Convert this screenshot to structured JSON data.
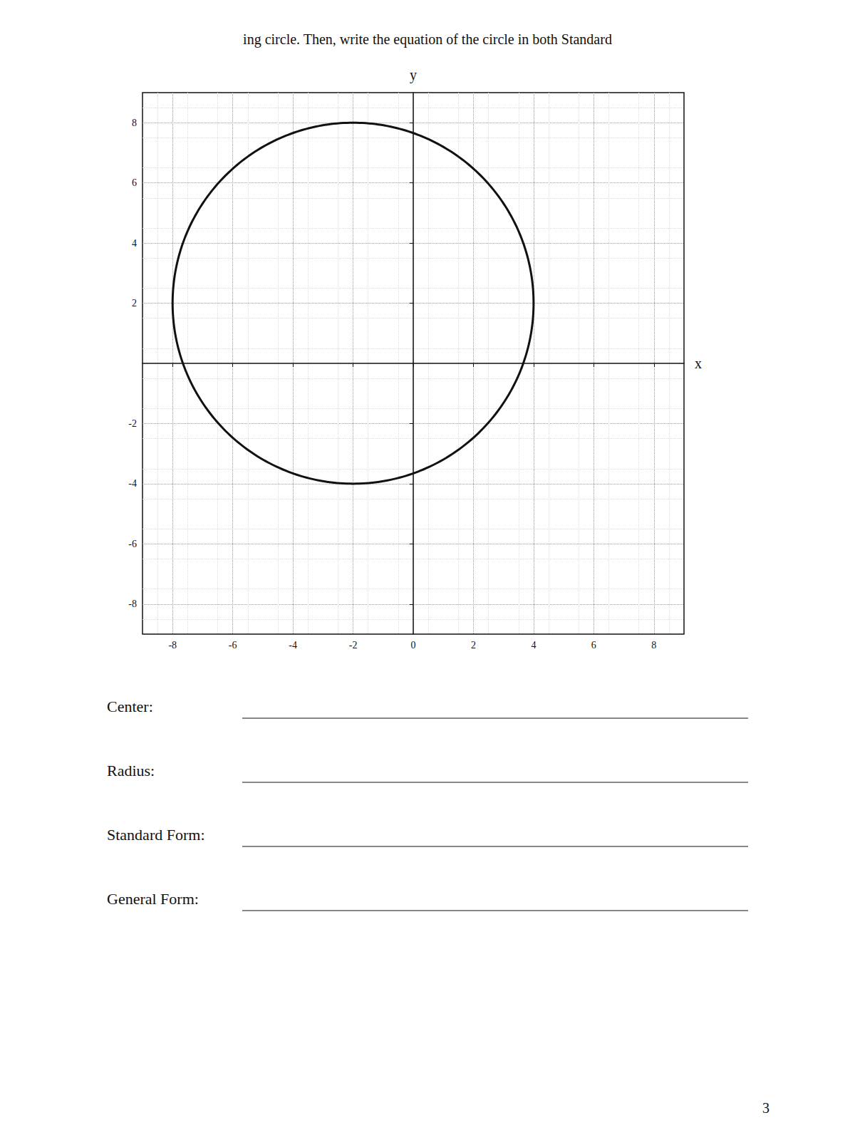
{
  "chart_data": {
    "type": "circle",
    "title": "ing circle. Then, write the equation of the circle in both Standard",
    "center": [
      -2,
      2
    ],
    "radius": 6,
    "color": "#111111",
    "xlabel": "x",
    "ylabel": "y",
    "xlim": [
      -9,
      9
    ],
    "ylim": [
      -9,
      9
    ],
    "xticks": [
      -8,
      -6,
      -4,
      -2,
      0,
      2,
      4,
      6,
      8
    ],
    "yticks": [
      -8,
      -6,
      -4,
      -2,
      2,
      4,
      6,
      8
    ],
    "grid": true,
    "annotations": [
      "Center:",
      "Radius:",
      "Standard Form:",
      "General Form:",
      "3"
    ]
  }
}
